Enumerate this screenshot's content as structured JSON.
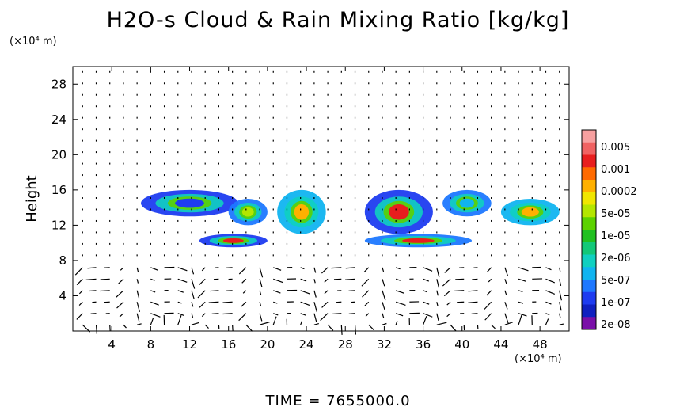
{
  "header": {
    "title": "H2O-s Cloud & Rain Mixing Ratio [kg/kg]",
    "y_unit": "(×10⁴ m)",
    "x_unit": "(×10⁴ m)",
    "time_label": "TIME = 7655000.0"
  },
  "chart_data": {
    "type": "heatmap",
    "title": "H2O-s Cloud & Rain Mixing Ratio [kg/kg]",
    "xlabel": "",
    "ylabel": "Height",
    "x_unit": "(×10⁴ m)",
    "y_unit": "(×10⁴ m)",
    "xlim": [
      0,
      51
    ],
    "ylim": [
      0,
      30
    ],
    "x_ticks": [
      4,
      8,
      12,
      16,
      20,
      24,
      28,
      32,
      36,
      40,
      44,
      48
    ],
    "y_ticks": [
      4,
      8,
      12,
      16,
      20,
      24,
      28
    ],
    "colorbar": {
      "labels": [
        "0.005",
        "0.001",
        "0.0002",
        "5e-05",
        "1e-05",
        "2e-06",
        "5e-07",
        "1e-07",
        "2e-08"
      ],
      "colors": [
        "#f7a0a0",
        "#f06262",
        "#e81e1e",
        "#ff6a00",
        "#ffb000",
        "#f0e600",
        "#b4e600",
        "#5cd200",
        "#20c020",
        "#12c878",
        "#10d0c0",
        "#10b4f0",
        "#1e78ff",
        "#1e3cf0",
        "#1020c0",
        "#7a10a8"
      ]
    },
    "cloud_regions": [
      {
        "x": [
          7,
          17
        ],
        "y": [
          13,
          16
        ],
        "level": "1e-07"
      },
      {
        "x": [
          16,
          20
        ],
        "y": [
          12,
          15
        ],
        "level": "5e-05"
      },
      {
        "x": [
          21,
          26
        ],
        "y": [
          11,
          16
        ],
        "level": "0.0002"
      },
      {
        "x": [
          30,
          37
        ],
        "y": [
          11,
          16
        ],
        "level": "0.001"
      },
      {
        "x": [
          38,
          43
        ],
        "y": [
          13,
          16
        ],
        "level": "5e-07"
      },
      {
        "x": [
          44,
          50
        ],
        "y": [
          12,
          15
        ],
        "level": "0.0002"
      },
      {
        "x": [
          13,
          20
        ],
        "y": [
          9.5,
          11
        ],
        "level": "0.001"
      },
      {
        "x": [
          30,
          41
        ],
        "y": [
          9.5,
          11
        ],
        "level": "0.001"
      }
    ],
    "wind_vectors": "present",
    "grid": false
  }
}
